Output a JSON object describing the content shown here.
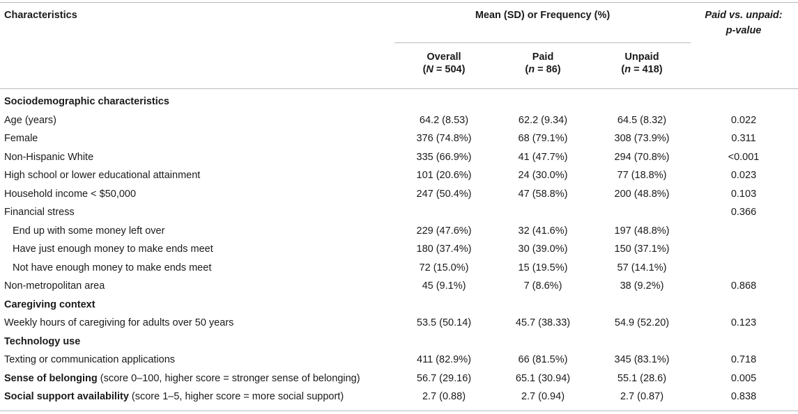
{
  "header": {
    "characteristics": "Characteristics",
    "group_label": "Mean (SD) or Frequency (%)",
    "pvalue_line1": "Paid vs. unpaid:",
    "pvalue_line2": "p-value",
    "columns": [
      {
        "label": "Overall",
        "n_symbol": "N",
        "n_text": " = 504)"
      },
      {
        "label": "Paid",
        "n_symbol": "n",
        "n_text": " = 86)"
      },
      {
        "label": "Unpaid",
        "n_symbol": "n",
        "n_text": " = 418)"
      }
    ]
  },
  "rows": [
    {
      "type": "section",
      "label": "Sociodemographic characteristics"
    },
    {
      "type": "data",
      "label": "Age (years)",
      "overall": "64.2 (8.53)",
      "paid": "62.2 (9.34)",
      "unpaid": "64.5 (8.32)",
      "p": "0.022"
    },
    {
      "type": "data",
      "label": "Female",
      "overall": "376 (74.8%)",
      "paid": "68 (79.1%)",
      "unpaid": "308 (73.9%)",
      "p": "0.311"
    },
    {
      "type": "data",
      "label": "Non-Hispanic White",
      "overall": "335 (66.9%)",
      "paid": "41 (47.7%)",
      "unpaid": "294 (70.8%)",
      "p": "<0.001"
    },
    {
      "type": "data",
      "label": "High school or lower educational attainment",
      "overall": "101 (20.6%)",
      "paid": "24 (30.0%)",
      "unpaid": "77 (18.8%)",
      "p": "0.023"
    },
    {
      "type": "data",
      "label": "Household income < $50,000",
      "overall": "247 (50.4%)",
      "paid": "47 (58.8%)",
      "unpaid": "200 (48.8%)",
      "p": "0.103"
    },
    {
      "type": "data",
      "label": "Financial stress",
      "overall": "",
      "paid": "",
      "unpaid": "",
      "p": "0.366"
    },
    {
      "type": "sub",
      "label": "End up with some money left over",
      "overall": "229 (47.6%)",
      "paid": "32 (41.6%)",
      "unpaid": "197 (48.8%)",
      "p": ""
    },
    {
      "type": "sub",
      "label": "Have just enough money to make ends meet",
      "overall": "180 (37.4%)",
      "paid": "30 (39.0%)",
      "unpaid": "150 (37.1%)",
      "p": ""
    },
    {
      "type": "sub",
      "label": "Not have enough money to make ends meet",
      "overall": "72 (15.0%)",
      "paid": "15 (19.5%)",
      "unpaid": "57 (14.1%)",
      "p": ""
    },
    {
      "type": "data",
      "label": "Non-metropolitan area",
      "overall": "45 (9.1%)",
      "paid": "7 (8.6%)",
      "unpaid": "38 (9.2%)",
      "p": "0.868"
    },
    {
      "type": "section",
      "label": "Caregiving context"
    },
    {
      "type": "data",
      "label": "Weekly hours of caregiving for adults over 50 years",
      "overall": "53.5 (50.14)",
      "paid": "45.7 (38.33)",
      "unpaid": "54.9 (52.20)",
      "p": "0.123"
    },
    {
      "type": "section",
      "label": "Technology use"
    },
    {
      "type": "data",
      "label": "Texting or communication applications",
      "overall": "411 (82.9%)",
      "paid": "66 (81.5%)",
      "unpaid": "345 (83.1%)",
      "p": "0.718"
    },
    {
      "type": "data",
      "label": "Sense of belonging",
      "label_bold": true,
      "label_rest": " (score 0–100, higher score = stronger sense of belonging)",
      "overall": "56.7 (29.16)",
      "paid": "65.1 (30.94)",
      "unpaid": "55.1 (28.6)",
      "p": "0.005"
    },
    {
      "type": "data",
      "label": "Social support availability",
      "label_bold": true,
      "label_rest": " (score 1–5, higher score = more social support)",
      "overall": "2.7 (0.88)",
      "paid": "2.7 (0.94)",
      "unpaid": "2.7 (0.87)",
      "p": "0.838"
    }
  ]
}
